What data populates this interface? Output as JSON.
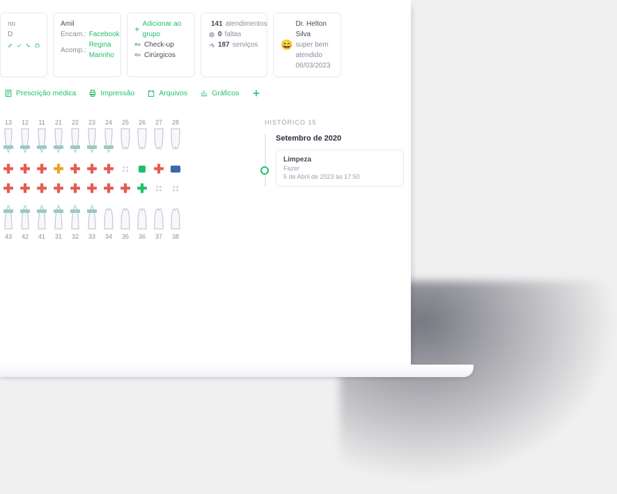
{
  "colors": {
    "accent_green": "#1fbf6b",
    "accent_red": "#e85a4f",
    "accent_blue": "#3a6aa8",
    "accent_orange": "#f0a020",
    "text_muted": "#8a8f9c",
    "border": "#e6e8ee",
    "bg": "#ffffff"
  },
  "cards": {
    "c1": {
      "line1": "no",
      "line2": "D"
    },
    "c2": {
      "name": "Amil",
      "encam_label": "Encam.:",
      "encam_value": "Facebook",
      "acomp_label": "Acomp.:",
      "acomp_value": "Regina Marinho"
    },
    "c3": {
      "title": "Adicionar ao grupo",
      "item1": "Check-up",
      "item2": "Cirúrgicos"
    },
    "c4": {
      "line1_count": "141",
      "line1_label": "atendimentos",
      "line2_count": "0",
      "line2_label": "faltas",
      "line3_count": "187",
      "line3_label": "serviços"
    },
    "c5": {
      "doctor": "Dr. Helton Silva",
      "note": "super bem atendido",
      "date": "06/03/2023"
    }
  },
  "tabs": {
    "t1": "Prescrição médica",
    "t2": "Impressão",
    "t3": "Arquivos",
    "t4": "Gráficos"
  },
  "history": {
    "label": "HISTÓRICO 15",
    "month": "Setembro de 2020",
    "card": {
      "title": "Limpeza",
      "status": "Fazer",
      "datetime": "5 de Abril de 2023 às 17:50"
    }
  },
  "odontogram": {
    "upper_numbers": [
      "13",
      "12",
      "11",
      "21",
      "22",
      "23",
      "24",
      "25",
      "26",
      "27",
      "28"
    ],
    "lower_numbers": [
      "43",
      "42",
      "41",
      "31",
      "32",
      "33",
      "34",
      "35",
      "36",
      "37",
      "38"
    ],
    "marker_row_upper": [
      {
        "type": "plus",
        "color": "red"
      },
      {
        "type": "plus",
        "color": "red"
      },
      {
        "type": "plus",
        "color": "red"
      },
      {
        "type": "plus",
        "color": "orange"
      },
      {
        "type": "plus",
        "color": "red"
      },
      {
        "type": "plus",
        "color": "red"
      },
      {
        "type": "plus",
        "color": "red"
      },
      {
        "type": "dots"
      },
      {
        "type": "square_green"
      },
      {
        "type": "plus",
        "color": "red"
      },
      {
        "type": "camera"
      }
    ],
    "marker_row_lower": [
      {
        "type": "plus",
        "color": "red"
      },
      {
        "type": "plus",
        "color": "red"
      },
      {
        "type": "plus",
        "color": "red"
      },
      {
        "type": "plus",
        "color": "red"
      },
      {
        "type": "plus",
        "color": "red"
      },
      {
        "type": "plus",
        "color": "red"
      },
      {
        "type": "plus",
        "color": "red"
      },
      {
        "type": "plus",
        "color": "red"
      },
      {
        "type": "plus",
        "color": "green"
      },
      {
        "type": "dots"
      },
      {
        "type": "dots"
      }
    ],
    "tooth_band_color": "#9cc9c4"
  }
}
